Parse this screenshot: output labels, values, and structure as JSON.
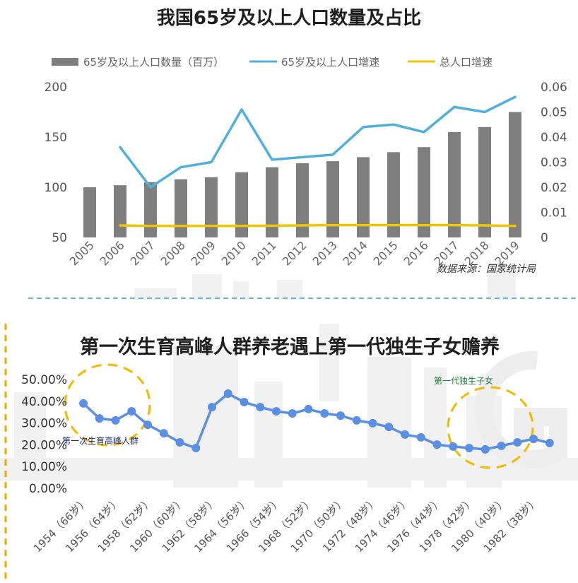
{
  "chart_data": [
    {
      "type": "bar",
      "title": "我国65岁及以上人口数量及占比",
      "categories": [
        "2005",
        "2006",
        "2007",
        "2008",
        "2009",
        "2010",
        "2011",
        "2012",
        "2013",
        "2014",
        "2015",
        "2016",
        "2017",
        "2018",
        "2019"
      ],
      "series": [
        {
          "name": "65岁及以上人口数量（百万）",
          "type": "bar",
          "axis": "left",
          "color": "#7f7f7f",
          "values": [
            100,
            102,
            105,
            108,
            110,
            115,
            120,
            124,
            126,
            130,
            135,
            140,
            155,
            160,
            175
          ]
        },
        {
          "name": "65岁及以上人口增速",
          "type": "line",
          "axis": "right",
          "color": "#4fb0dc",
          "values": [
            null,
            0.036,
            0.02,
            0.028,
            0.03,
            0.051,
            0.031,
            0.032,
            0.033,
            0.044,
            0.045,
            0.042,
            0.052,
            0.05,
            0.056
          ]
        },
        {
          "name": "总人口增速",
          "type": "line",
          "axis": "right",
          "color": "#f2c500",
          "values": [
            null,
            0.0048,
            0.0046,
            0.0046,
            0.0046,
            0.0046,
            0.0047,
            0.0048,
            0.0049,
            0.0049,
            0.0049,
            0.0049,
            0.0049,
            0.0048,
            0.0046
          ]
        }
      ],
      "ylim": [
        50,
        200
      ],
      "yticks": [
        50,
        100,
        150,
        200
      ],
      "y2lim": [
        0,
        0.06
      ],
      "y2ticks": [
        0,
        0.01,
        0.02,
        0.03,
        0.04,
        0.05,
        0.06
      ],
      "legend": "top",
      "grid": false,
      "source": "数据来源：国家统计局"
    },
    {
      "type": "line",
      "title": "第一次生育高峰人群养老遇上第一代独生子女赡养",
      "x": [
        1954,
        1955,
        1956,
        1957,
        1958,
        1959,
        1960,
        1961,
        1962,
        1963,
        1964,
        1965,
        1966,
        1967,
        1968,
        1969,
        1970,
        1971,
        1972,
        1973,
        1974,
        1975,
        1976,
        1977,
        1978,
        1979,
        1980,
        1981,
        1982,
        1983
      ],
      "xticklabels": [
        "1954（66岁）",
        "1956（64岁）",
        "1958（62岁）",
        "1960（60岁）",
        "1962（58岁）",
        "1964（56岁）",
        "1966（54岁）",
        "1968（52岁）",
        "1970（50岁）",
        "1972（48岁）",
        "1974（46岁）",
        "1976（44岁）",
        "1978（42岁）",
        "1980（40岁）",
        "1982（38岁）"
      ],
      "series": [
        {
          "color": "#5b8fe3",
          "values": [
            39.0,
            32.1,
            31.2,
            35.4,
            29.2,
            25.3,
            21.1,
            18.5,
            37.3,
            43.5,
            39.6,
            37.3,
            35.4,
            34.4,
            36.4,
            34.4,
            33.4,
            31.2,
            29.9,
            28.2,
            24.7,
            23.4,
            20.1,
            19.2,
            18.5,
            17.9,
            19.5,
            21.1,
            22.7,
            20.8
          ]
        }
      ],
      "ylim": [
        0,
        50
      ],
      "ytick_labels": [
        "0.00%",
        "10.00%",
        "20.00%",
        "30.00%",
        "40.00%",
        "50.00%"
      ],
      "grid": false,
      "annotations": [
        {
          "text": "第一次生育高峰人群",
          "color": "#1c2a6e"
        },
        {
          "text": "第一代独生子女",
          "color": "#1b7a3c"
        }
      ],
      "highlight_color": "#f5b800"
    }
  ],
  "decor": {
    "separator_color": "#6ab4d8",
    "side_line_color": "#f0a800"
  }
}
